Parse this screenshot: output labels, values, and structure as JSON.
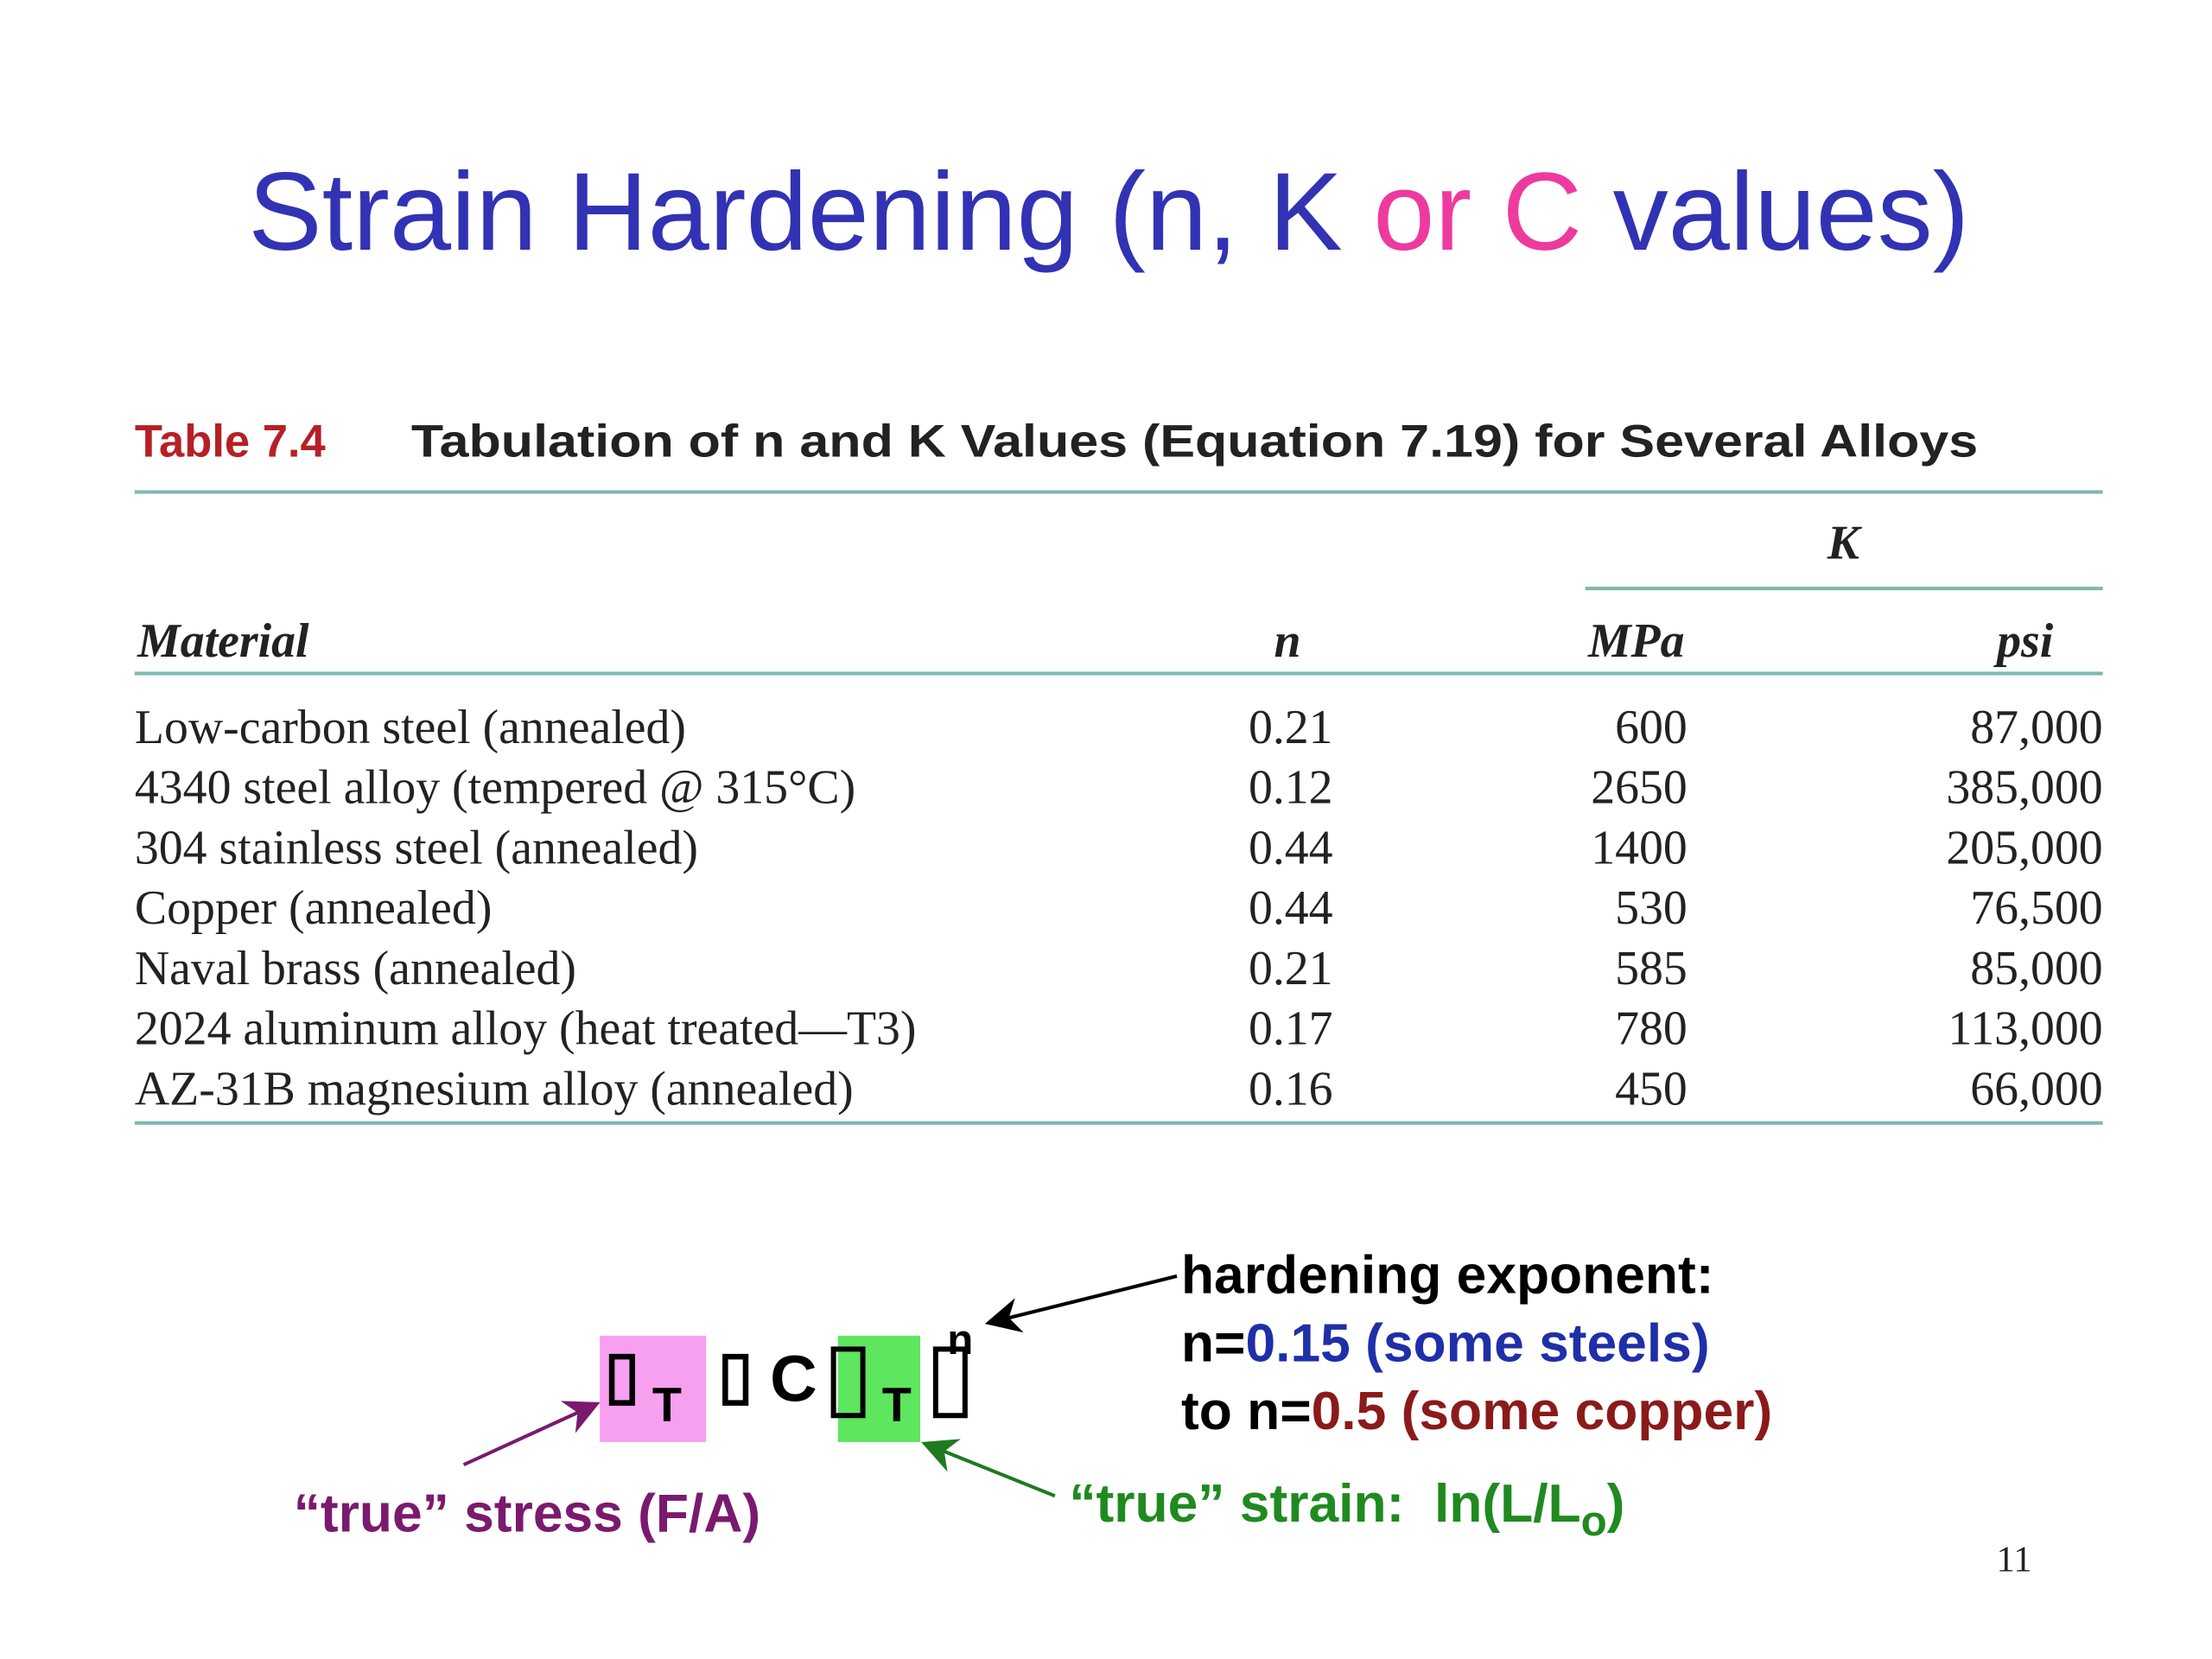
{
  "title": [
    "Strain Hardening (n, K",
    "or C",
    "values)"
  ],
  "caption": {
    "label": "Table 7.4",
    "text": "Tabulation of n and K Values (Equation 7.19) for Several Alloys"
  },
  "table": {
    "group_header": "K",
    "columns": [
      "Material",
      "n",
      "MPa",
      "psi"
    ],
    "rows": [
      [
        "Low-carbon steel (annealed)",
        "0.21",
        "600",
        "87,000"
      ],
      [
        "4340 steel alloy (tempered @ 315°C)",
        "0.12",
        "2650",
        "385,000"
      ],
      [
        "304 stainless steel (annealed)",
        "0.44",
        "1400",
        "205,000"
      ],
      [
        "Copper (annealed)",
        "0.44",
        "530",
        "76,500"
      ],
      [
        "Naval brass (annealed)",
        "0.21",
        "585",
        "85,000"
      ],
      [
        "2024 aluminum alloy (heat treated—T3)",
        "0.17",
        "780",
        "113,000"
      ],
      [
        "AZ-31B magnesium alloy (annealed)",
        "0.16",
        "450",
        "66,000"
      ]
    ]
  },
  "equation": {
    "sigma": "▯",
    "sigma_sub": "T",
    "equals": "▯",
    "C": "C",
    "epsilon": "▯",
    "epsilon_sub": "T",
    "bracket": "▯",
    "exponent": "n"
  },
  "annotations": {
    "exponent": {
      "label": "hardening exponent:",
      "line1": [
        "n=",
        "0.15 (some steels)"
      ],
      "line2": [
        "to n=",
        "0.5 (some copper)"
      ]
    },
    "stress": "“true” stress (F/A)",
    "strain": [
      "“true” strain:  ln(L/L",
      "o",
      ")"
    ]
  },
  "page_number": "11"
}
